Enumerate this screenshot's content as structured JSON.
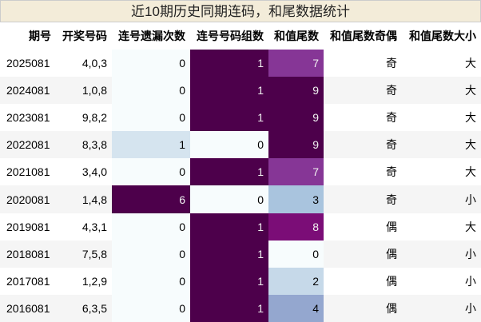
{
  "title": "近10期历史同期连码，和尾数据统计",
  "table": {
    "columns": [
      "期号",
      "开奖号码",
      "连号遗漏次数",
      "连号号码组数",
      "和值尾数",
      "和值尾数奇偶",
      "和值尾数大小"
    ],
    "rows": [
      [
        "2025081",
        "4,0,3",
        0,
        1,
        7,
        "奇",
        "大"
      ],
      [
        "2024081",
        "1,0,8",
        0,
        1,
        9,
        "奇",
        "大"
      ],
      [
        "2023081",
        "9,8,2",
        0,
        1,
        9,
        "奇",
        "大"
      ],
      [
        "2022081",
        "8,3,8",
        1,
        0,
        9,
        "奇",
        "大"
      ],
      [
        "2021081",
        "3,4,0",
        0,
        1,
        7,
        "奇",
        "大"
      ],
      [
        "2020081",
        "1,4,8",
        6,
        0,
        3,
        "奇",
        "小"
      ],
      [
        "2019081",
        "4,3,1",
        0,
        1,
        8,
        "偶",
        "大"
      ],
      [
        "2018081",
        "7,5,8",
        0,
        1,
        0,
        "偶",
        "小"
      ],
      [
        "2017081",
        "1,2,9",
        0,
        1,
        2,
        "偶",
        "小"
      ],
      [
        "2016081",
        "6,3,5",
        0,
        1,
        4,
        "偶",
        "小"
      ]
    ],
    "gradient_columns": [
      2,
      3,
      4
    ],
    "colormap": [
      "#f7fcfd",
      "#e0ecf4",
      "#bfd3e6",
      "#9ebcda",
      "#8c96c6",
      "#8c6bb1",
      "#88419d",
      "#810f7c",
      "#4d004b"
    ]
  }
}
